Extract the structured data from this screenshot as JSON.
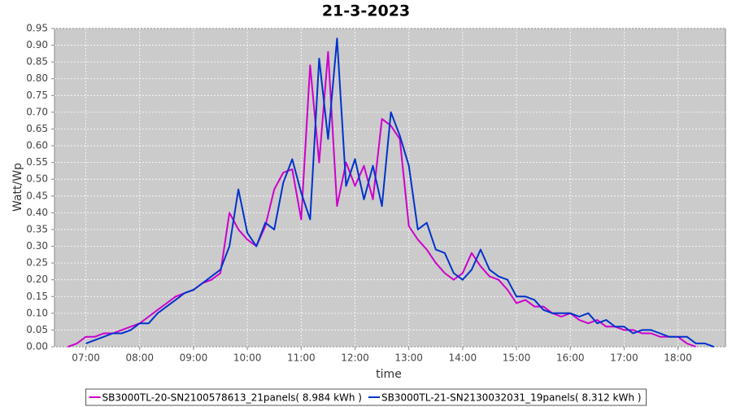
{
  "chart_data": {
    "type": "line",
    "title": "21-3-2023",
    "x_label": "time",
    "y_label": "Watt/Wp",
    "x": [
      400,
      410,
      420,
      430,
      440,
      450,
      460,
      470,
      480,
      490,
      500,
      510,
      520,
      530,
      540,
      550,
      560,
      570,
      580,
      590,
      600,
      610,
      620,
      630,
      640,
      650,
      660,
      670,
      680,
      690,
      700,
      710,
      720,
      730,
      740,
      750,
      760,
      770,
      780,
      790,
      800,
      810,
      820,
      830,
      840,
      850,
      860,
      870,
      880,
      890,
      900,
      910,
      920,
      930,
      940,
      950,
      960,
      970,
      980,
      990,
      1000,
      1010,
      1020,
      1030,
      1040,
      1050,
      1060,
      1070,
      1080,
      1090,
      1100,
      1110,
      1120
    ],
    "series": [
      {
        "name": "SB3000TL-20-SN2100578613_21panels( 8.984 kWh )",
        "color": "#cc00cc",
        "values": [
          0.0,
          0.01,
          0.03,
          0.03,
          0.04,
          0.04,
          0.05,
          0.06,
          0.07,
          0.09,
          0.11,
          0.13,
          0.15,
          0.16,
          0.17,
          0.19,
          0.2,
          0.22,
          0.4,
          0.35,
          0.32,
          0.3,
          0.36,
          0.47,
          0.52,
          0.53,
          0.38,
          0.84,
          0.55,
          0.88,
          0.42,
          0.55,
          0.48,
          0.54,
          0.44,
          0.68,
          0.66,
          0.62,
          0.36,
          0.32,
          0.29,
          0.25,
          0.22,
          0.2,
          0.22,
          0.28,
          0.24,
          0.21,
          0.2,
          0.17,
          0.13,
          0.14,
          0.12,
          0.12,
          0.1,
          0.09,
          0.1,
          0.08,
          0.07,
          0.08,
          0.06,
          0.06,
          0.05,
          0.05,
          0.04,
          0.04,
          0.03,
          0.03,
          0.03,
          0.01,
          0.0,
          null,
          null
        ]
      },
      {
        "name": "SB3000TL-21-SN2130032031_19panels( 8.312 kWh )",
        "color": "#0033cc",
        "values": [
          null,
          null,
          0.01,
          0.02,
          0.03,
          0.04,
          0.04,
          0.05,
          0.07,
          0.07,
          0.1,
          0.12,
          0.14,
          0.16,
          0.17,
          0.19,
          0.21,
          0.23,
          0.3,
          0.47,
          0.34,
          0.3,
          0.37,
          0.35,
          0.49,
          0.56,
          0.46,
          0.38,
          0.86,
          0.62,
          0.92,
          0.48,
          0.56,
          0.44,
          0.54,
          0.42,
          0.7,
          0.63,
          0.54,
          0.35,
          0.37,
          0.29,
          0.28,
          0.22,
          0.2,
          0.23,
          0.29,
          0.23,
          0.21,
          0.2,
          0.15,
          0.15,
          0.14,
          0.11,
          0.1,
          0.1,
          0.1,
          0.09,
          0.1,
          0.07,
          0.08,
          0.06,
          0.06,
          0.04,
          0.05,
          0.05,
          0.04,
          0.03,
          0.03,
          0.03,
          0.01,
          0.01,
          0.0
        ]
      }
    ],
    "xlim": [
      385,
      1133
    ],
    "xticks": [
      {
        "value": 420,
        "label": "07:00"
      },
      {
        "value": 480,
        "label": "08:00"
      },
      {
        "value": 540,
        "label": "09:00"
      },
      {
        "value": 600,
        "label": "10:00"
      },
      {
        "value": 660,
        "label": "11:00"
      },
      {
        "value": 720,
        "label": "12:00"
      },
      {
        "value": 780,
        "label": "13:00"
      },
      {
        "value": 840,
        "label": "14:00"
      },
      {
        "value": 900,
        "label": "15:00"
      },
      {
        "value": 960,
        "label": "16:00"
      },
      {
        "value": 1020,
        "label": "17:00"
      },
      {
        "value": 1080,
        "label": "18:00"
      }
    ],
    "ylim": [
      0,
      0.95
    ],
    "yticks": [
      {
        "value": 0,
        "label": "0.00"
      },
      {
        "value": 0.05,
        "label": "0.05"
      },
      {
        "value": 0.1,
        "label": "0.10"
      },
      {
        "value": 0.15,
        "label": "0.15"
      },
      {
        "value": 0.2,
        "label": "0.20"
      },
      {
        "value": 0.25,
        "label": "0.25"
      },
      {
        "value": 0.3,
        "label": "0.30"
      },
      {
        "value": 0.35,
        "label": "0.35"
      },
      {
        "value": 0.4,
        "label": "0.40"
      },
      {
        "value": 0.45,
        "label": "0.45"
      },
      {
        "value": 0.5,
        "label": "0.50"
      },
      {
        "value": 0.55,
        "label": "0.55"
      },
      {
        "value": 0.6,
        "label": "0.60"
      },
      {
        "value": 0.65,
        "label": "0.65"
      },
      {
        "value": 0.7,
        "label": "0.70"
      },
      {
        "value": 0.75,
        "label": "0.75"
      },
      {
        "value": 0.8,
        "label": "0.80"
      },
      {
        "value": 0.85,
        "label": "0.85"
      },
      {
        "value": 0.9,
        "label": "0.90"
      },
      {
        "value": 0.95,
        "label": "0.95"
      }
    ],
    "grid": true,
    "plot_background": "#cbcbcb",
    "legend": "bottom"
  }
}
